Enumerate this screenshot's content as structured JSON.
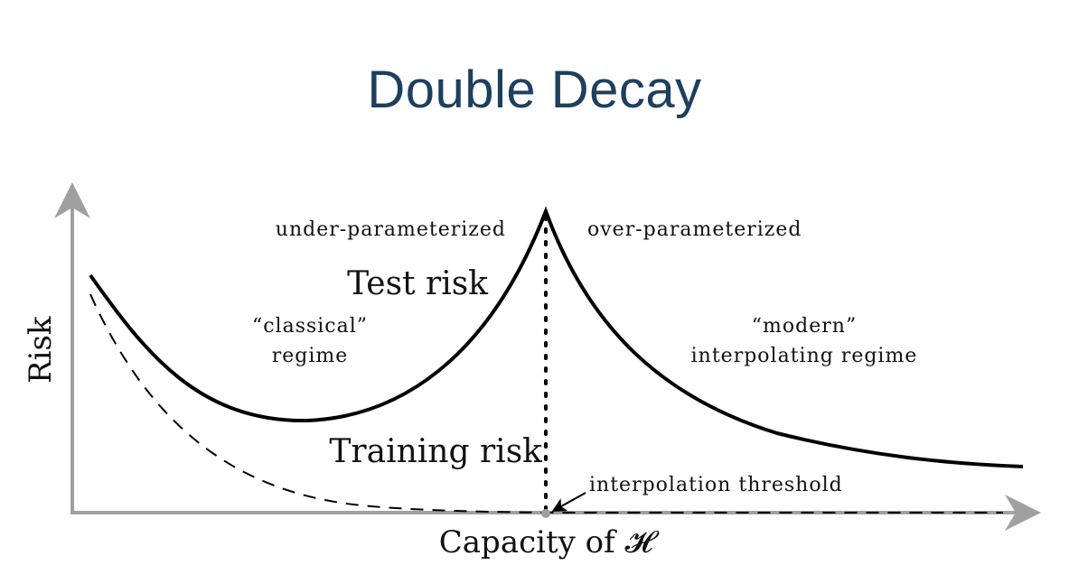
{
  "title": "Double Decay",
  "diagram": {
    "y_axis_label": "Risk",
    "x_axis_label": "Capacity of 𝓗",
    "region_left_label": "under-parameterized",
    "region_right_label": "over-parameterized",
    "test_risk_label": "Test risk",
    "training_risk_label": "Training risk",
    "classical_label_line1": "“classical”",
    "classical_label_line2": "regime",
    "modern_label_line1": "“modern”",
    "modern_label_line2": "interpolating regime",
    "threshold_label": "interpolation threshold",
    "axis_color": "#a0a0a0",
    "curve_color": "#000000"
  }
}
